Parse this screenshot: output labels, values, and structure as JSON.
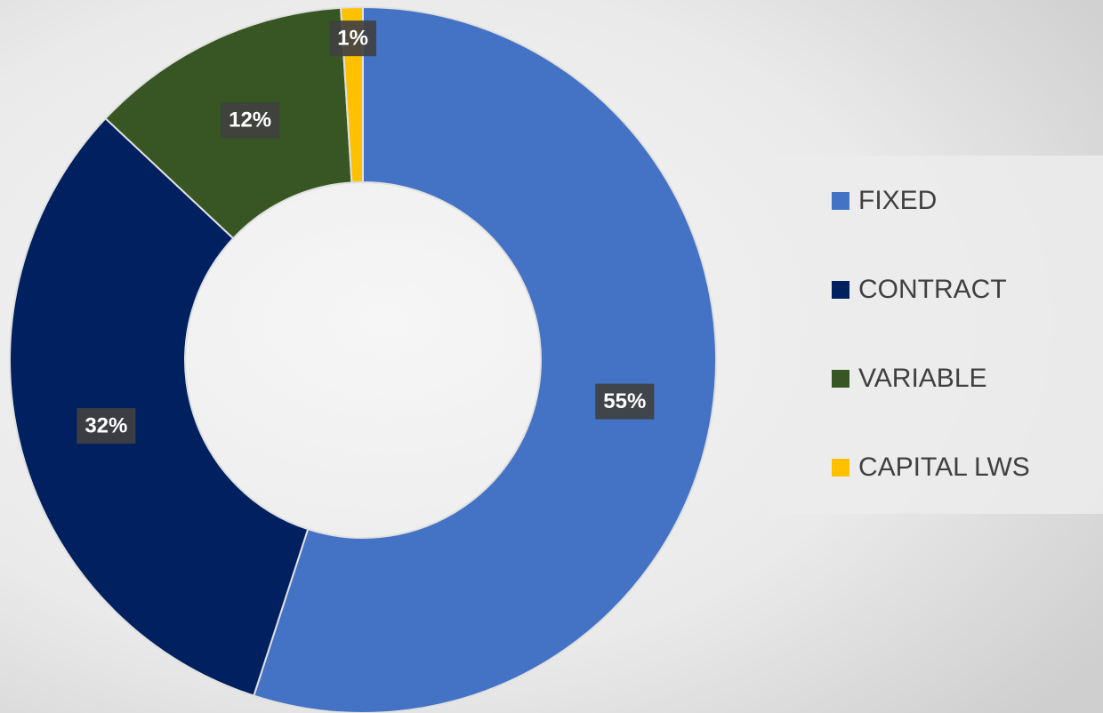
{
  "chart_data": {
    "type": "donut",
    "categories": [
      "FIXED",
      "CONTRACT",
      "VARIABLE",
      "CAPITAL LWS"
    ],
    "values": [
      55,
      32,
      12,
      1
    ],
    "value_labels": [
      "55%",
      "32%",
      "12%",
      "1%"
    ],
    "colors": [
      "#4472c4",
      "#002060",
      "#375623",
      "#ffc000"
    ],
    "legend": "right"
  }
}
